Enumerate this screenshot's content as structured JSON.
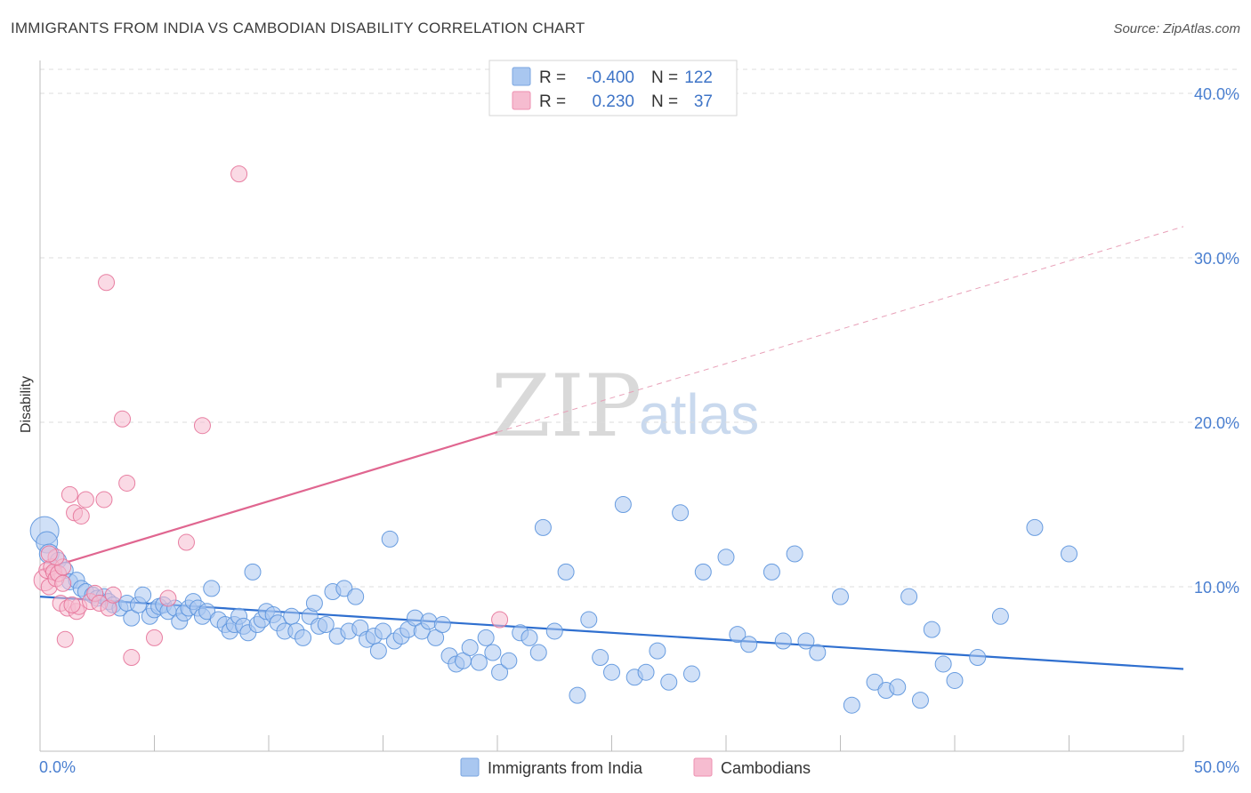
{
  "header": {
    "title": "IMMIGRANTS FROM INDIA VS CAMBODIAN DISABILITY CORRELATION CHART",
    "source": "Source: ZipAtlas.com"
  },
  "legend": {
    "rows": [
      {
        "r_label": "R =",
        "r_value": "-0.400",
        "n_label": "N =",
        "n_value": "122",
        "color": "#a9c7f0",
        "stroke": "#7aa6e0"
      },
      {
        "r_label": "R =",
        "r_value": "0.230",
        "n_label": "N =",
        "n_value": "37",
        "color": "#f6bcd0",
        "stroke": "#ee8fb0"
      }
    ]
  },
  "bottom_legend": {
    "items": [
      {
        "label": "Immigrants from India",
        "color": "#a9c7f0",
        "stroke": "#7aa6e0"
      },
      {
        "label": "Cambodians",
        "color": "#f6bcd0",
        "stroke": "#ee8fb0"
      }
    ]
  },
  "watermark": {
    "zip": "ZIP",
    "atlas": "atlas"
  },
  "chart_data": {
    "type": "scatter",
    "title": "IMMIGRANTS FROM INDIA VS CAMBODIAN DISABILITY CORRELATION CHART",
    "ylabel": "Disability",
    "xlim": [
      0,
      50
    ],
    "ylim": [
      0,
      42
    ],
    "x_tick_labels": [
      "0.0%",
      "50.0%"
    ],
    "y_ticks": [
      10,
      20,
      30,
      40
    ],
    "y_tick_labels": [
      "10.0%",
      "20.0%",
      "30.0%",
      "40.0%"
    ],
    "grid": true,
    "legend_position": "top-center",
    "series": [
      {
        "name": "Immigrants from India",
        "color": "#5b93dd",
        "fill": "#a9c7f0",
        "r": -0.4,
        "n": 122,
        "trend": {
          "x0": 0,
          "y0": 9.4,
          "x1": 50,
          "y1": 5.0,
          "style": "solid"
        },
        "points": [
          [
            0.2,
            13.4,
            16
          ],
          [
            0.3,
            12.7,
            12
          ],
          [
            0.4,
            12.0,
            11
          ],
          [
            0.8,
            11.6,
            9
          ],
          [
            1.1,
            11.0,
            9
          ],
          [
            1.3,
            10.3,
            9
          ],
          [
            1.6,
            10.4,
            9
          ],
          [
            1.8,
            9.9,
            9
          ],
          [
            2.0,
            9.7,
            9
          ],
          [
            2.3,
            9.5,
            9
          ],
          [
            2.5,
            9.3,
            9
          ],
          [
            2.8,
            9.4,
            9
          ],
          [
            3.0,
            9.1,
            9
          ],
          [
            3.2,
            8.9,
            9
          ],
          [
            3.5,
            8.7,
            9
          ],
          [
            3.8,
            9.0,
            9
          ],
          [
            4.0,
            8.1,
            9
          ],
          [
            4.3,
            8.9,
            9
          ],
          [
            4.5,
            9.5,
            9
          ],
          [
            4.8,
            8.2,
            9
          ],
          [
            5.0,
            8.6,
            9
          ],
          [
            5.2,
            8.8,
            9
          ],
          [
            5.4,
            8.9,
            9
          ],
          [
            5.6,
            8.5,
            9
          ],
          [
            5.9,
            8.7,
            9
          ],
          [
            6.1,
            7.9,
            9
          ],
          [
            6.3,
            8.4,
            9
          ],
          [
            6.5,
            8.7,
            9
          ],
          [
            6.7,
            9.1,
            9
          ],
          [
            6.9,
            8.7,
            9
          ],
          [
            7.1,
            8.2,
            9
          ],
          [
            7.3,
            8.5,
            9
          ],
          [
            7.5,
            9.9,
            9
          ],
          [
            7.8,
            8.0,
            9
          ],
          [
            8.1,
            7.7,
            9
          ],
          [
            8.3,
            7.3,
            9
          ],
          [
            8.5,
            7.7,
            9
          ],
          [
            8.7,
            8.2,
            9
          ],
          [
            8.9,
            7.6,
            9
          ],
          [
            9.1,
            7.2,
            9
          ],
          [
            9.3,
            10.9,
            9
          ],
          [
            9.5,
            7.7,
            9
          ],
          [
            9.7,
            8.0,
            9
          ],
          [
            9.9,
            8.5,
            9
          ],
          [
            10.2,
            8.3,
            9
          ],
          [
            10.4,
            7.8,
            9
          ],
          [
            10.7,
            7.3,
            9
          ],
          [
            11.0,
            8.2,
            9
          ],
          [
            11.2,
            7.3,
            9
          ],
          [
            11.5,
            6.9,
            9
          ],
          [
            11.8,
            8.2,
            9
          ],
          [
            12.0,
            9.0,
            9
          ],
          [
            12.2,
            7.6,
            9
          ],
          [
            12.5,
            7.7,
            9
          ],
          [
            12.8,
            9.7,
            9
          ],
          [
            13.0,
            7.0,
            9
          ],
          [
            13.3,
            9.9,
            9
          ],
          [
            13.5,
            7.3,
            9
          ],
          [
            13.8,
            9.4,
            9
          ],
          [
            14.0,
            7.5,
            9
          ],
          [
            14.3,
            6.8,
            9
          ],
          [
            14.6,
            7.0,
            9
          ],
          [
            14.8,
            6.1,
            9
          ],
          [
            15.0,
            7.3,
            9
          ],
          [
            15.3,
            12.9,
            9
          ],
          [
            15.5,
            6.7,
            9
          ],
          [
            15.8,
            7.0,
            9
          ],
          [
            16.1,
            7.4,
            9
          ],
          [
            16.4,
            8.1,
            9
          ],
          [
            16.7,
            7.3,
            9
          ],
          [
            17.0,
            7.9,
            9
          ],
          [
            17.3,
            6.9,
            9
          ],
          [
            17.6,
            7.7,
            9
          ],
          [
            17.9,
            5.8,
            9
          ],
          [
            18.2,
            5.3,
            9
          ],
          [
            18.5,
            5.5,
            9
          ],
          [
            18.8,
            6.3,
            9
          ],
          [
            19.2,
            5.4,
            9
          ],
          [
            19.5,
            6.9,
            9
          ],
          [
            19.8,
            6.0,
            9
          ],
          [
            20.1,
            4.8,
            9
          ],
          [
            20.5,
            5.5,
            9
          ],
          [
            21.0,
            7.2,
            9
          ],
          [
            21.4,
            6.9,
            9
          ],
          [
            21.8,
            6.0,
            9
          ],
          [
            22.0,
            13.6,
            9
          ],
          [
            22.5,
            7.3,
            9
          ],
          [
            23.0,
            10.9,
            9
          ],
          [
            23.5,
            3.4,
            9
          ],
          [
            24.0,
            8.0,
            9
          ],
          [
            24.5,
            5.7,
            9
          ],
          [
            25.0,
            4.8,
            9
          ],
          [
            25.5,
            15.0,
            9
          ],
          [
            26.0,
            4.5,
            9
          ],
          [
            26.5,
            4.8,
            9
          ],
          [
            27.0,
            6.1,
            9
          ],
          [
            27.5,
            4.2,
            9
          ],
          [
            28.0,
            14.5,
            9
          ],
          [
            28.5,
            4.7,
            9
          ],
          [
            29.0,
            10.9,
            9
          ],
          [
            30.0,
            11.8,
            9
          ],
          [
            30.5,
            7.1,
            9
          ],
          [
            31.0,
            6.5,
            9
          ],
          [
            32.0,
            10.9,
            9
          ],
          [
            32.5,
            6.7,
            9
          ],
          [
            33.0,
            12.0,
            9
          ],
          [
            33.5,
            6.7,
            9
          ],
          [
            34.0,
            6.0,
            9
          ],
          [
            35.0,
            9.4,
            9
          ],
          [
            35.5,
            2.8,
            9
          ],
          [
            36.5,
            4.2,
            9
          ],
          [
            37.0,
            3.7,
            9
          ],
          [
            37.5,
            3.9,
            9
          ],
          [
            38.0,
            9.4,
            9
          ],
          [
            38.5,
            3.1,
            9
          ],
          [
            39.0,
            7.4,
            9
          ],
          [
            39.5,
            5.3,
            9
          ],
          [
            40.0,
            4.3,
            9
          ],
          [
            41.0,
            5.7,
            9
          ],
          [
            42.0,
            8.2,
            9
          ],
          [
            43.5,
            13.6,
            9
          ],
          [
            45.0,
            12.0,
            9
          ]
        ]
      },
      {
        "name": "Cambodians",
        "color": "#e57399",
        "fill": "#f6bcd0",
        "r": 0.23,
        "n": 37,
        "trend": {
          "x0": 0,
          "y0": 11.0,
          "x1": 20,
          "y1": 19.4,
          "x_ext": 50,
          "y_ext": 31.9
        },
        "points": [
          [
            0.2,
            10.4,
            12
          ],
          [
            0.3,
            11.0,
            9
          ],
          [
            0.4,
            10.0,
            9
          ],
          [
            0.5,
            11.2,
            9
          ],
          [
            0.6,
            10.9,
            9
          ],
          [
            0.7,
            10.5,
            9
          ],
          [
            0.8,
            10.8,
            9
          ],
          [
            0.9,
            9.0,
            9
          ],
          [
            1.0,
            11.2,
            9
          ],
          [
            1.1,
            6.8,
            9
          ],
          [
            1.2,
            8.7,
            9
          ],
          [
            1.3,
            15.6,
            9
          ],
          [
            1.5,
            14.5,
            9
          ],
          [
            1.6,
            8.5,
            9
          ],
          [
            1.7,
            8.8,
            9
          ],
          [
            1.8,
            14.3,
            9
          ],
          [
            2.0,
            15.3,
            9
          ],
          [
            2.2,
            9.1,
            9
          ],
          [
            2.4,
            9.6,
            9
          ],
          [
            2.6,
            9.0,
            9
          ],
          [
            2.8,
            15.3,
            9
          ],
          [
            2.9,
            28.5,
            9
          ],
          [
            3.0,
            8.7,
            9
          ],
          [
            3.2,
            9.5,
            9
          ],
          [
            3.6,
            20.2,
            9
          ],
          [
            3.8,
            16.3,
            9
          ],
          [
            4.0,
            5.7,
            9
          ],
          [
            5.0,
            6.9,
            9
          ],
          [
            5.6,
            9.3,
            9
          ],
          [
            6.4,
            12.7,
            9
          ],
          [
            7.1,
            19.8,
            9
          ],
          [
            8.7,
            35.1,
            9
          ],
          [
            1.0,
            10.2,
            9
          ],
          [
            0.7,
            11.8,
            9
          ],
          [
            0.4,
            12.0,
            9
          ],
          [
            1.4,
            8.9,
            9
          ],
          [
            20.1,
            8.0,
            9
          ]
        ]
      }
    ]
  }
}
